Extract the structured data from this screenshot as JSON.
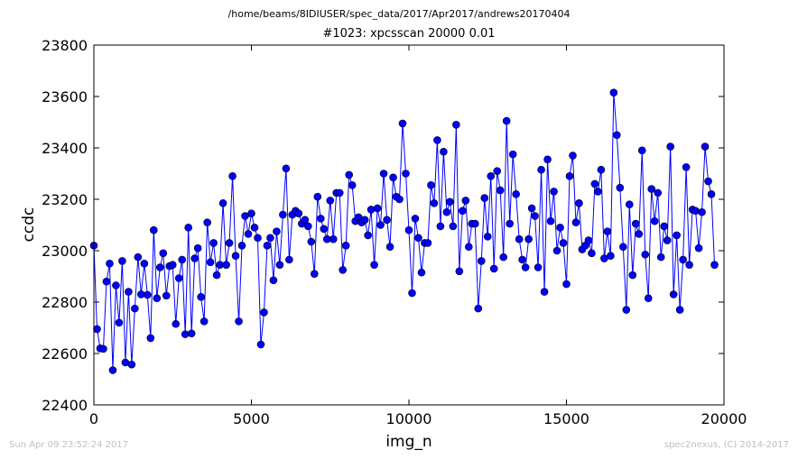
{
  "header": {
    "suptitle": "/home/beams/8IDIUSER/spec_data/2017/Apr2017/andrews20170404",
    "title": "#1023: xpcsscan 20000 0.01"
  },
  "footer": {
    "left": "Sun Apr 09 23:52:24 2017",
    "right": "spec2nexus, (C) 2014-2017"
  },
  "chart_data": {
    "type": "line",
    "xlabel": "img_n",
    "ylabel": "ccdc",
    "xlim": [
      0,
      20000
    ],
    "ylim": [
      22400,
      23800
    ],
    "xticks": [
      0,
      5000,
      10000,
      15000,
      20000
    ],
    "yticks": [
      22400,
      22600,
      22800,
      23000,
      23200,
      23400,
      23600,
      23800
    ],
    "color": "#0000ff",
    "marker": "circle",
    "x_step": 100,
    "series": [
      {
        "values": [
          23020,
          22695,
          22620,
          22618,
          22880,
          22950,
          22535,
          22865,
          22720,
          22960,
          22565,
          22840,
          22557,
          22775,
          22975,
          22830,
          22950,
          22828,
          22660,
          23080,
          22815,
          22935,
          22990,
          22825,
          22940,
          22945,
          22715,
          22893,
          22965,
          22675,
          23090,
          22678,
          22970,
          23010,
          22820,
          22725,
          23110,
          22955,
          23030,
          22905,
          22945,
          23185,
          22945,
          23030,
          23290,
          22980,
          22725,
          23020,
          23135,
          23065,
          23145,
          23090,
          23050,
          22635,
          22760,
          23020,
          23050,
          22885,
          23075,
          22945,
          23140,
          23320,
          22965,
          23140,
          23155,
          23145,
          23105,
          23120,
          23095,
          23035,
          22910,
          23210,
          23125,
          23085,
          23045,
          23195,
          23045,
          23225,
          23225,
          22925,
          23020,
          23295,
          23255,
          23115,
          23130,
          23110,
          23120,
          23060,
          23160,
          22945,
          23165,
          23100,
          23300,
          23120,
          23015,
          23285,
          23210,
          23200,
          23495,
          23300,
          23080,
          22835,
          23125,
          23050,
          22915,
          23030,
          23030,
          23255,
          23185,
          23430,
          23095,
          23385,
          23150,
          23190,
          23095,
          23490,
          22920,
          23155,
          23195,
          23015,
          23105,
          23105,
          22775,
          22960,
          23205,
          23055,
          23290,
          22930,
          23310,
          23235,
          22975,
          23505,
          23105,
          23375,
          23220,
          23045,
          22965,
          22935,
          23045,
          23165,
          23135,
          22935,
          23315,
          22840,
          23355,
          23115,
          23230,
          23000,
          23090,
          23030,
          22870,
          23290,
          23370,
          23110,
          23185,
          23005,
          23020,
          23040,
          22990,
          23260,
          23230,
          23315,
          22970,
          23075,
          22980,
          23615,
          23450,
          23245,
          23015,
          22770,
          23180,
          22905,
          23105,
          23065,
          23390,
          22985,
          22815,
          23240,
          23115,
          23225,
          22975,
          23095,
          23040,
          23405,
          22830,
          23060,
          22770,
          22965,
          23325,
          22945,
          23160,
          23155,
          23010,
          23150,
          23405,
          23270,
          23220,
          22945
        ]
      }
    ]
  }
}
